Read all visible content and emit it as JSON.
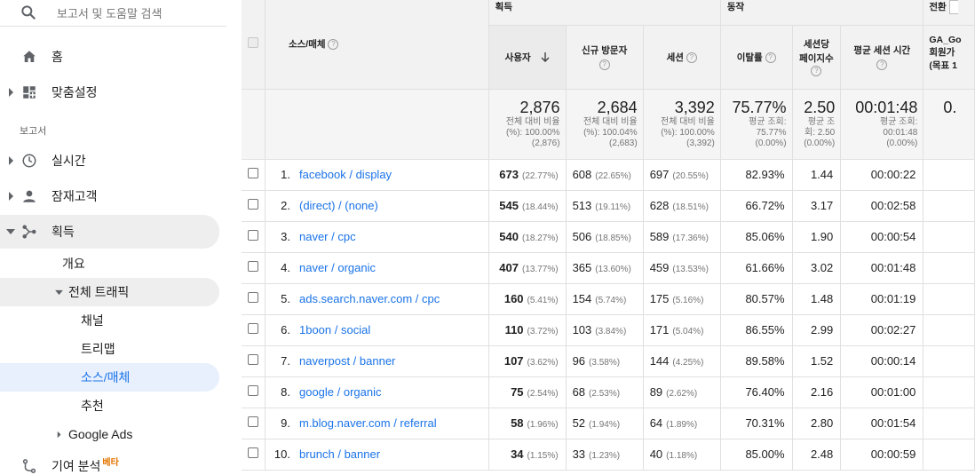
{
  "sidebar": {
    "search_placeholder": "보고서 및 도움말 검색",
    "home": "홈",
    "custom": "맞춤설정",
    "reports_label": "보고서",
    "realtime": "실시간",
    "audience": "잠재고객",
    "acquisition": "획득",
    "overview": "개요",
    "all_traffic": "전체 트래픽",
    "channels": "채널",
    "treemap": "트리맵",
    "source_medium": "소스/매체",
    "referrals": "추천",
    "google_ads": "Google Ads",
    "attribution": "기여 분석",
    "beta": "베타"
  },
  "table": {
    "groups": {
      "acquisition": "획득",
      "behavior": "동작",
      "conversion": "전환"
    },
    "dimension_header": "소스/매체",
    "columns": {
      "users": "사용자",
      "new_users": "신규 방문자",
      "sessions": "세션",
      "bounce_rate": "이탈률",
      "pages_per_session_1": "세션당",
      "pages_per_session_2": "페이지수",
      "avg_session_duration": "평균 세션 시간",
      "goal_1": "GA_Go",
      "goal_2": "회원가",
      "goal_3": "(목표 1"
    },
    "totals": {
      "users": {
        "value": "2,876",
        "l1": "전체 대비 비율",
        "l2": "(%): 100.00%",
        "l3": "(2,876)"
      },
      "new_users": {
        "value": "2,684",
        "l1": "전체 대비 비율",
        "l2": "(%): 100.04%",
        "l3": "(2,683)"
      },
      "sessions": {
        "value": "3,392",
        "l1": "전체 대비 비율",
        "l2": "(%): 100.00%",
        "l3": "(3,392)"
      },
      "bounce_rate": {
        "value": "75.77%",
        "l1": "평균 조회:",
        "l2": "75.77%",
        "l3": "(0.00%)"
      },
      "pages": {
        "value": "2.50",
        "l1": "평균 조",
        "l2": "회: 2.50",
        "l3": "(0.00%)"
      },
      "duration": {
        "value": "00:01:48",
        "l1": "평균 조회:",
        "l2": "00:01:48",
        "l3": "(0.00%)"
      },
      "goal": {
        "value": "0."
      }
    },
    "rows": [
      {
        "num": "1.",
        "source": "facebook / display",
        "users": "673",
        "users_pct": "(22.77%)",
        "new_users": "608",
        "new_users_pct": "(22.65%)",
        "sessions": "697",
        "sessions_pct": "(20.55%)",
        "bounce": "82.93%",
        "pages": "1.44",
        "duration": "00:00:22"
      },
      {
        "num": "2.",
        "source": "(direct) / (none)",
        "users": "545",
        "users_pct": "(18.44%)",
        "new_users": "513",
        "new_users_pct": "(19.11%)",
        "sessions": "628",
        "sessions_pct": "(18.51%)",
        "bounce": "66.72%",
        "pages": "3.17",
        "duration": "00:02:58"
      },
      {
        "num": "3.",
        "source": "naver / cpc",
        "users": "540",
        "users_pct": "(18.27%)",
        "new_users": "506",
        "new_users_pct": "(18.85%)",
        "sessions": "589",
        "sessions_pct": "(17.36%)",
        "bounce": "85.06%",
        "pages": "1.90",
        "duration": "00:00:54"
      },
      {
        "num": "4.",
        "source": "naver / organic",
        "users": "407",
        "users_pct": "(13.77%)",
        "new_users": "365",
        "new_users_pct": "(13.60%)",
        "sessions": "459",
        "sessions_pct": "(13.53%)",
        "bounce": "61.66%",
        "pages": "3.02",
        "duration": "00:01:48"
      },
      {
        "num": "5.",
        "source": "ads.search.naver.com / cpc",
        "users": "160",
        "users_pct": "(5.41%)",
        "new_users": "154",
        "new_users_pct": "(5.74%)",
        "sessions": "175",
        "sessions_pct": "(5.16%)",
        "bounce": "80.57%",
        "pages": "1.48",
        "duration": "00:01:19"
      },
      {
        "num": "6.",
        "source": "1boon / social",
        "users": "110",
        "users_pct": "(3.72%)",
        "new_users": "103",
        "new_users_pct": "(3.84%)",
        "sessions": "171",
        "sessions_pct": "(5.04%)",
        "bounce": "86.55%",
        "pages": "2.99",
        "duration": "00:02:27"
      },
      {
        "num": "7.",
        "source": "naverpost / banner",
        "users": "107",
        "users_pct": "(3.62%)",
        "new_users": "96",
        "new_users_pct": "(3.58%)",
        "sessions": "144",
        "sessions_pct": "(4.25%)",
        "bounce": "89.58%",
        "pages": "1.52",
        "duration": "00:00:14"
      },
      {
        "num": "8.",
        "source": "google / organic",
        "users": "75",
        "users_pct": "(2.54%)",
        "new_users": "68",
        "new_users_pct": "(2.53%)",
        "sessions": "89",
        "sessions_pct": "(2.62%)",
        "bounce": "76.40%",
        "pages": "2.16",
        "duration": "00:01:00"
      },
      {
        "num": "9.",
        "source": "m.blog.naver.com / referral",
        "users": "58",
        "users_pct": "(1.96%)",
        "new_users": "52",
        "new_users_pct": "(1.94%)",
        "sessions": "64",
        "sessions_pct": "(1.89%)",
        "bounce": "70.31%",
        "pages": "2.80",
        "duration": "00:01:54"
      },
      {
        "num": "10.",
        "source": "brunch / banner",
        "users": "34",
        "users_pct": "(1.15%)",
        "new_users": "33",
        "new_users_pct": "(1.23%)",
        "sessions": "40",
        "sessions_pct": "(1.18%)",
        "bounce": "85.00%",
        "pages": "2.48",
        "duration": "00:00:59"
      }
    ]
  }
}
